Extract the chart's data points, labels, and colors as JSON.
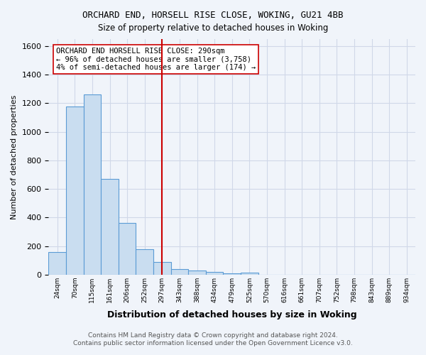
{
  "title1": "ORCHARD END, HORSELL RISE CLOSE, WOKING, GU21 4BB",
  "title2": "Size of property relative to detached houses in Woking",
  "xlabel": "Distribution of detached houses by size in Woking",
  "ylabel": "Number of detached properties",
  "footer1": "Contains HM Land Registry data © Crown copyright and database right 2024.",
  "footer2": "Contains public sector information licensed under the Open Government Licence v3.0.",
  "annotation_line1": "ORCHARD END HORSELL RISE CLOSE: 290sqm",
  "annotation_line2": "← 96% of detached houses are smaller (3,758)",
  "annotation_line3": "4% of semi-detached houses are larger (174) →",
  "red_line_bin": 6,
  "bin_labels": [
    "24sqm",
    "70sqm",
    "115sqm",
    "161sqm",
    "206sqm",
    "252sqm",
    "297sqm",
    "343sqm",
    "388sqm",
    "434sqm",
    "479sqm",
    "525sqm",
    "570sqm",
    "616sqm",
    "661sqm",
    "707sqm",
    "752sqm",
    "798sqm",
    "843sqm",
    "889sqm",
    "934sqm"
  ],
  "bar_heights": [
    160,
    1175,
    1260,
    670,
    360,
    180,
    90,
    40,
    30,
    20,
    10,
    15,
    0,
    0,
    0,
    0,
    0,
    0,
    0,
    0,
    0
  ],
  "bar_color": "#c9ddf0",
  "bar_edge_color": "#5b9bd5",
  "red_line_color": "#cc0000",
  "grid_color": "#d0d8e8",
  "background_color": "#f0f4fa",
  "ylim": [
    0,
    1650
  ],
  "yticks": [
    0,
    200,
    400,
    600,
    800,
    1000,
    1200,
    1400,
    1600
  ],
  "annotation_box_color": "white",
  "annotation_box_edge": "#cc0000"
}
